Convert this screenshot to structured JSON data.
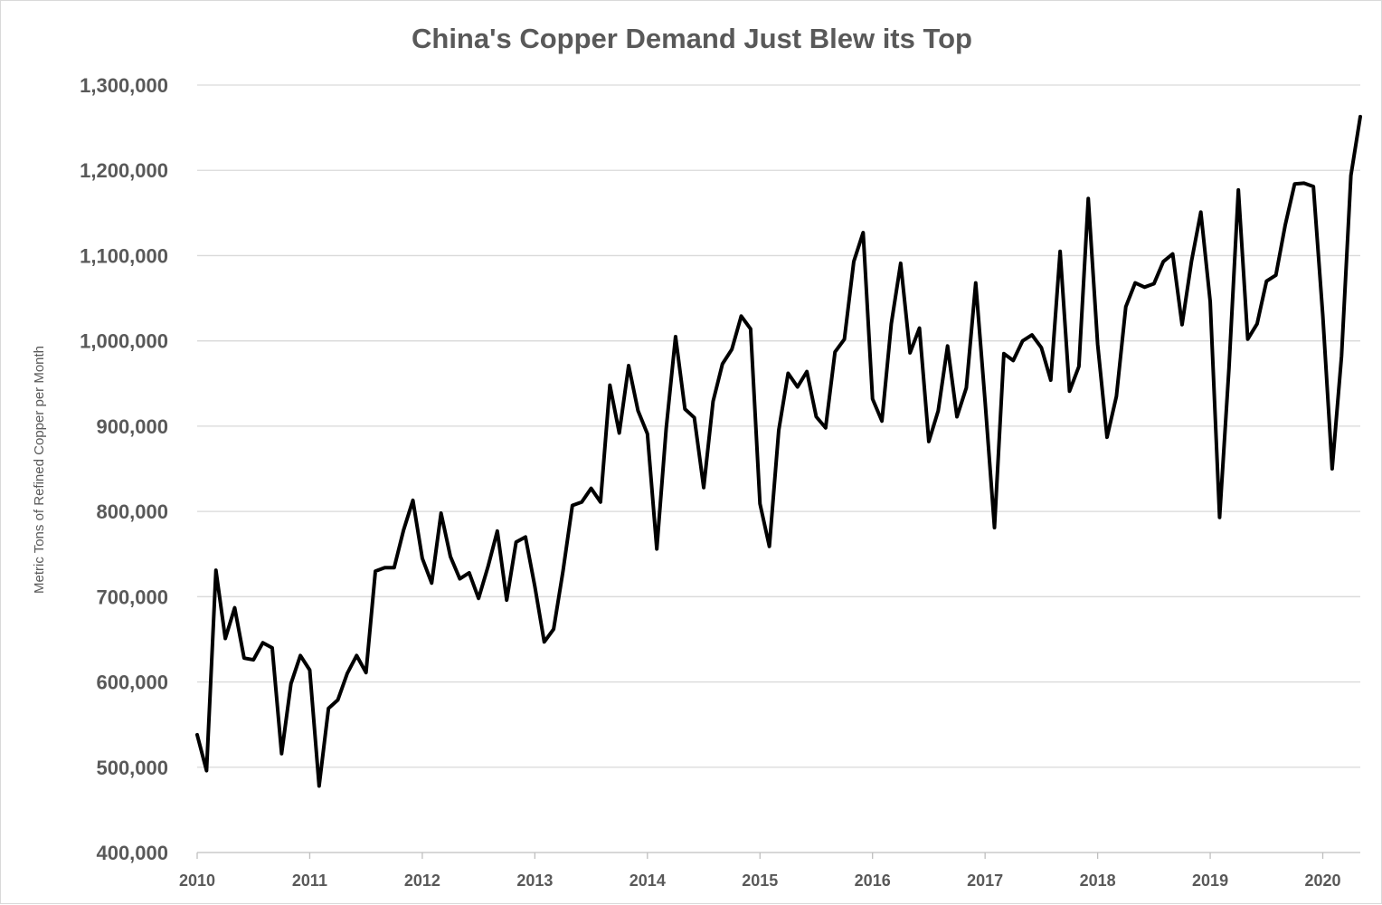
{
  "chart_data": {
    "type": "line",
    "title": "China's Copper Demand Just Blew its Top",
    "xlabel": "",
    "ylabel": "Metric Tons of Refined Copper per Month",
    "ylim": [
      400000,
      1300000
    ],
    "yticks": [
      400000,
      500000,
      600000,
      700000,
      800000,
      900000,
      1000000,
      1100000,
      1200000,
      1300000
    ],
    "ytick_labels": [
      "400,000",
      "500,000",
      "600,000",
      "700,000",
      "800,000",
      "900,000",
      "1,000,000",
      "1,100,000",
      "1,200,000",
      "1,300,000"
    ],
    "xlim": [
      "2010-01",
      "2020-05"
    ],
    "xticks": [
      "2010",
      "2011",
      "2012",
      "2013",
      "2014",
      "2015",
      "2016",
      "2017",
      "2018",
      "2019",
      "2020"
    ],
    "grid": true,
    "legend": "none",
    "line_color": "#000000",
    "series": [
      {
        "x": [
          "2010-01",
          "2010-02",
          "2010-03",
          "2010-04",
          "2010-05",
          "2010-06",
          "2010-07",
          "2010-08",
          "2010-09",
          "2010-10",
          "2010-11",
          "2010-12",
          "2011-01",
          "2011-02",
          "2011-03",
          "2011-04",
          "2011-05",
          "2011-06",
          "2011-07",
          "2011-08",
          "2011-09",
          "2011-10",
          "2011-11",
          "2011-12",
          "2012-01",
          "2012-02",
          "2012-03",
          "2012-04",
          "2012-05",
          "2012-06",
          "2012-07",
          "2012-08",
          "2012-09",
          "2012-10",
          "2012-11",
          "2012-12",
          "2013-01",
          "2013-02",
          "2013-03",
          "2013-04",
          "2013-05",
          "2013-06",
          "2013-07",
          "2013-08",
          "2013-09",
          "2013-10",
          "2013-11",
          "2013-12",
          "2014-01",
          "2014-02",
          "2014-03",
          "2014-04",
          "2014-05",
          "2014-06",
          "2014-07",
          "2014-08",
          "2014-09",
          "2014-10",
          "2014-11",
          "2014-12",
          "2015-01",
          "2015-02",
          "2015-03",
          "2015-04",
          "2015-05",
          "2015-06",
          "2015-07",
          "2015-08",
          "2015-09",
          "2015-10",
          "2015-11",
          "2015-12",
          "2016-01",
          "2016-02",
          "2016-03",
          "2016-04",
          "2016-05",
          "2016-06",
          "2016-07",
          "2016-08",
          "2016-09",
          "2016-10",
          "2016-11",
          "2016-12",
          "2017-01",
          "2017-02",
          "2017-03",
          "2017-04",
          "2017-05",
          "2017-06",
          "2017-07",
          "2017-08",
          "2017-09",
          "2017-10",
          "2017-11",
          "2017-12",
          "2018-01",
          "2018-02",
          "2018-03",
          "2018-04",
          "2018-05",
          "2018-06",
          "2018-07",
          "2018-08",
          "2018-09",
          "2018-10",
          "2018-11",
          "2018-12",
          "2019-01",
          "2019-02",
          "2019-03",
          "2019-04",
          "2019-05",
          "2019-06",
          "2019-07",
          "2019-08",
          "2019-09",
          "2019-10",
          "2019-11",
          "2019-12",
          "2020-01",
          "2020-02",
          "2020-03",
          "2020-04",
          "2020-05"
        ],
        "values": [
          538000,
          496000,
          731000,
          651000,
          687000,
          628000,
          626000,
          646000,
          640000,
          516000,
          598000,
          631000,
          614000,
          478000,
          569000,
          579000,
          610000,
          631000,
          611000,
          730000,
          734000,
          734000,
          778000,
          813000,
          745000,
          716000,
          798000,
          747000,
          721000,
          728000,
          698000,
          735000,
          777000,
          696000,
          764000,
          770000,
          712000,
          647000,
          662000,
          730000,
          807000,
          811000,
          827000,
          811000,
          948000,
          892000,
          971000,
          918000,
          891000,
          756000,
          897000,
          1005000,
          920000,
          910000,
          828000,
          929000,
          973000,
          990000,
          1029000,
          1014000,
          809000,
          759000,
          895000,
          962000,
          946000,
          964000,
          911000,
          898000,
          987000,
          1002000,
          1093000,
          1127000,
          932000,
          906000,
          1020000,
          1091000,
          986000,
          1015000,
          882000,
          918000,
          994000,
          911000,
          945000,
          1068000,
          929000,
          781000,
          985000,
          977000,
          1000000,
          1007000,
          992000,
          954000,
          1105000,
          941000,
          970000,
          1167000,
          996000,
          887000,
          935000,
          1040000,
          1068000,
          1063000,
          1067000,
          1093000,
          1102000,
          1019000,
          1093000,
          1151000,
          1046000,
          793000,
          968000,
          1177000,
          1002000,
          1020000,
          1070000,
          1077000,
          1136000,
          1184000,
          1185000,
          1181000,
          1030000,
          850000,
          982000,
          1194000,
          1263000
        ]
      }
    ]
  }
}
